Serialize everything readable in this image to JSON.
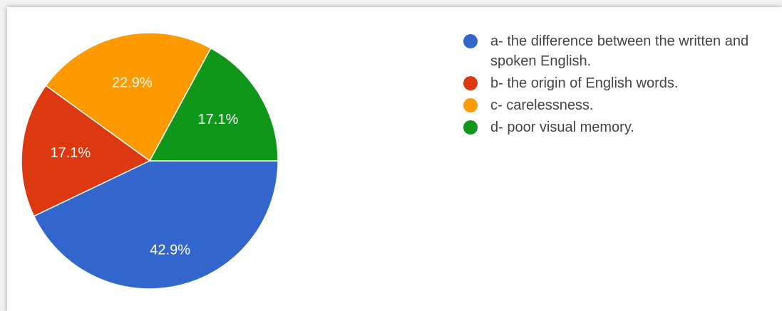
{
  "chart_data": {
    "type": "pie",
    "slices": [
      {
        "label": "a- the difference between the written and spoken English.",
        "value": 42.9,
        "display": "42.9%",
        "color": "#3366cc"
      },
      {
        "label": "b- the origin of English words.",
        "value": 17.1,
        "display": "17.1%",
        "color": "#dc3912"
      },
      {
        "label": "c- carelessness.",
        "value": 22.9,
        "display": "22.9%",
        "color": "#ff9900"
      },
      {
        "label": "d- poor visual memory.",
        "value": 17.1,
        "display": "17.1%",
        "color": "#109618"
      }
    ],
    "legend_position": "right",
    "start_angle_deg": 90,
    "direction": "clockwise"
  }
}
